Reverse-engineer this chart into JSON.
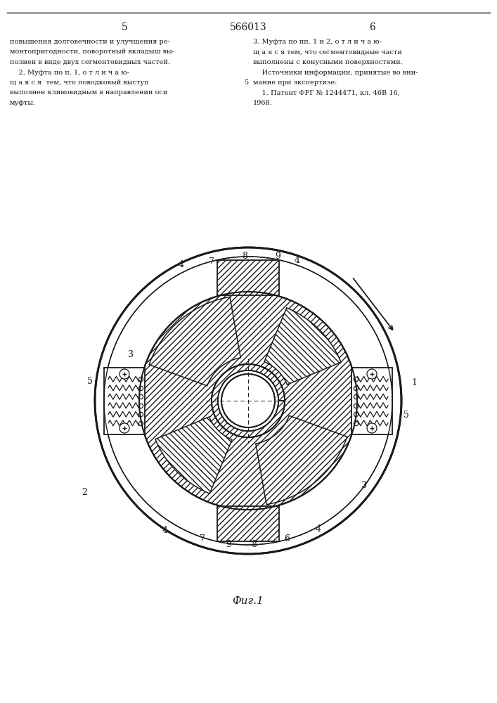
{
  "patent_number": "566013",
  "page_left": "5",
  "page_right": "6",
  "text_left": "повышения долговечности и улучшения ре-\nмонтопригодности, поворотный вкладыш вы-\nполнен в виде двух сегментовидных частей.\n    2. Муфта по п. 1, о т л и ч а ю-\nщ а я с я  тем, что поводковый выступ\nвыполнен клиновидным в направлении оси\nмуфты.",
  "text_right": "3. Муфта по пп. 1 и 2, о т л и ч а ю-\nщ а я с я тем, что сегментовидные части\nвыполнены с конусными поверхностями.\n    Источники информации, принятые во вни-\nмание при экспертизе:\n    1. Патент ФРГ № 1244471, кл. 46В 16,\n1968.",
  "fig_caption": "Фиг.1",
  "bg_color": "#ffffff",
  "lc": "#1a1a1a"
}
